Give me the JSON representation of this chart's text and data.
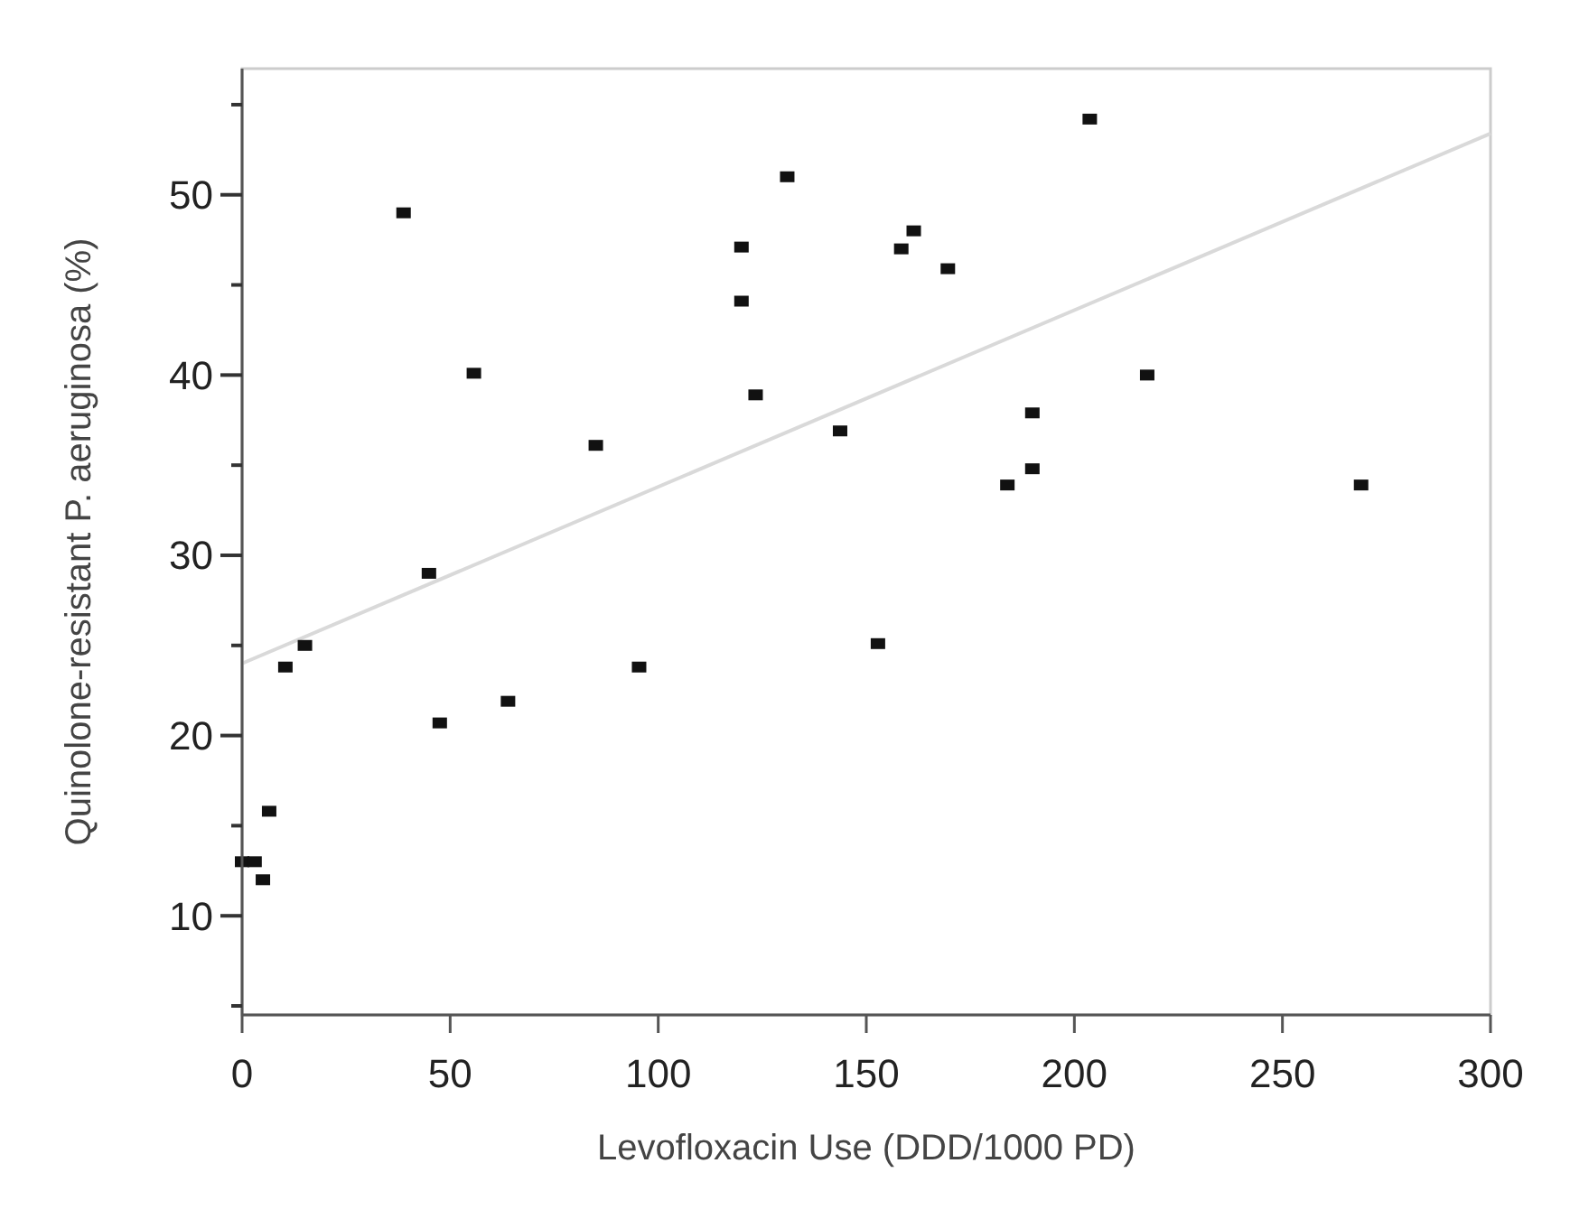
{
  "chart_data": {
    "type": "scatter",
    "xlabel": "Levofloxacin Use (DDD/1000 PD)",
    "ylabel": "Quinolone-resistant P. aeruginosa (%)",
    "xlim": [
      0,
      300
    ],
    "xticks": [
      0,
      50,
      100,
      150,
      200,
      250,
      300
    ],
    "ylim": [
      4.5,
      57
    ],
    "yticks": [
      {
        "value": 5,
        "label": null
      },
      10,
      {
        "value": 15,
        "label": null
      },
      20,
      {
        "value": 25,
        "label": null
      },
      30,
      {
        "value": 35,
        "label": null
      },
      40,
      {
        "value": 45,
        "label": null
      },
      50,
      {
        "value": 55,
        "label": null
      }
    ],
    "grid": false,
    "series": [
      {
        "marker": "square",
        "color": "#111111",
        "x": [
          38.8,
          55.7,
          44.9,
          123.4,
          131,
          120,
          120,
          85,
          143.7,
          203.7,
          161.4,
          158.4,
          169.6,
          217.5,
          189.9,
          189.9,
          183.9,
          268.9,
          152.8,
          15.1,
          10.4,
          47.5,
          63.9,
          95.4,
          6.5,
          0,
          3,
          5
        ],
        "values": [
          49.0,
          40.1,
          29.0,
          38.9,
          51.0,
          47.1,
          44.1,
          36.1,
          36.9,
          54.2,
          48.0,
          47.0,
          45.9,
          40.0,
          37.9,
          34.8,
          33.9,
          33.9,
          25.1,
          25.0,
          23.8,
          20.7,
          21.9,
          23.8,
          15.8,
          13,
          13,
          12
        ]
      },
      {
        "type": "line",
        "marker": "none",
        "color": "#d9d9d9",
        "x": [
          0,
          300
        ],
        "values": [
          24.0,
          53.4
        ]
      }
    ]
  }
}
